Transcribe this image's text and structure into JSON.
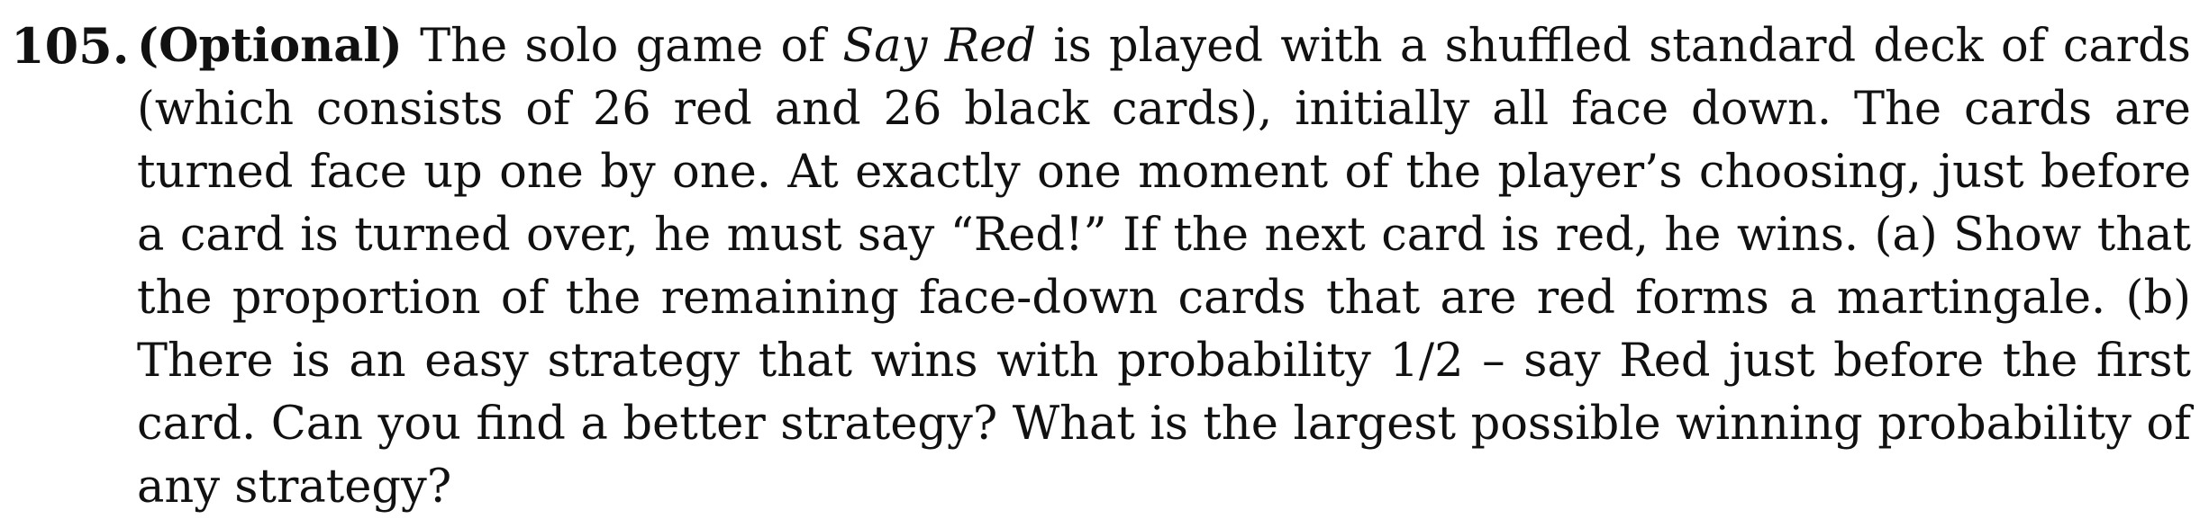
{
  "problem": {
    "number": "105.",
    "label": "(Optional)",
    "text_before_title": " The solo game of ",
    "game_title": "Say Red",
    "text_after_title": " is played with a shuffled standard deck of cards (which consists of 26 red and 26 black cards), initially all face down. The cards are turned face up one by one. At exactly one moment of the player’s choosing, just before a card is turned over, he must say “Red!” If the next card is red, he wins. (a) Show that the proportion of the remaining face-down cards that are red forms a martingale. (b) There is an easy strategy that wins with probability 1/2 – say Red just before the first card. Can you find a better strategy? What is the largest possible winning probability of any strategy?"
  }
}
